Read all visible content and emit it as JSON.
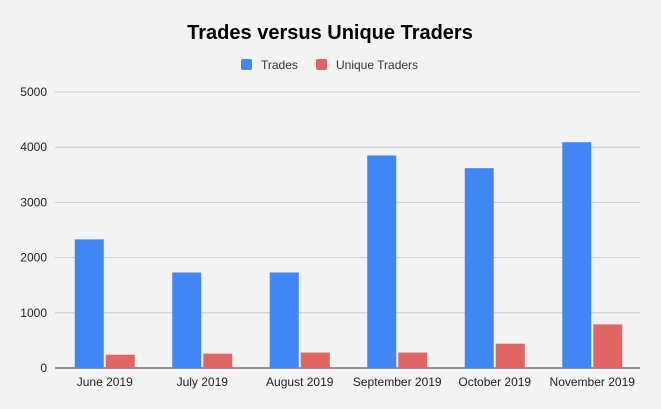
{
  "chart_data": {
    "type": "bar",
    "title": "Trades versus Unique Traders",
    "categories": [
      "June 2019",
      "July 2019",
      "August 2019",
      "September 2019",
      "October 2019",
      "November 2019"
    ],
    "series": [
      {
        "name": "Trades",
        "color": "#4285f4",
        "values": [
          2330,
          1730,
          1730,
          3850,
          3620,
          4090
        ]
      },
      {
        "name": "Unique Traders",
        "color": "#e06666",
        "values": [
          240,
          260,
          280,
          280,
          440,
          790
        ]
      }
    ],
    "ylim": [
      0,
      5000
    ],
    "yticks": [
      "0",
      "1000",
      "2000",
      "3000",
      "4000",
      "5000"
    ],
    "xlabel": "",
    "ylabel": "",
    "grid": true,
    "legend_position": "top-center"
  }
}
